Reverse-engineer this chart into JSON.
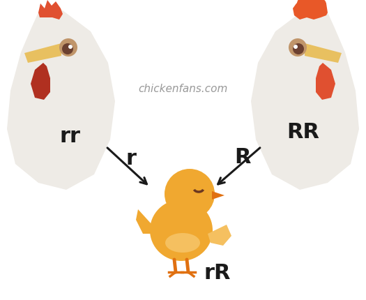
{
  "background_color": "#ffffff",
  "website_text": "chickenfans.com",
  "website_color": "#999999",
  "website_fontsize": 11,
  "label_left": "rr",
  "label_right": "RR",
  "label_baby": "rR",
  "label_r": "r",
  "label_R": "R",
  "label_fontsize": 22,
  "label_color": "#1a1a1a",
  "hen_body_color": "#eeebe6",
  "comb_color_hen": "#e05030",
  "comb_color_rooster": "#e85828",
  "wattle_color_hen": "#b03020",
  "wattle_color_rooster": "#e05030",
  "beak_color": "#e8c060",
  "eye_outer_color": "#c0956a",
  "eye_inner_color": "#6b4030",
  "chick_body_color": "#f0a830",
  "chick_light_color": "#f5c060",
  "chick_dark_color": "#d88820",
  "chick_leg_color": "#e07010",
  "chick_eye_color": "#6b3820",
  "arrow_color": "#1a1a1a",
  "arrow_lw": 2.2
}
